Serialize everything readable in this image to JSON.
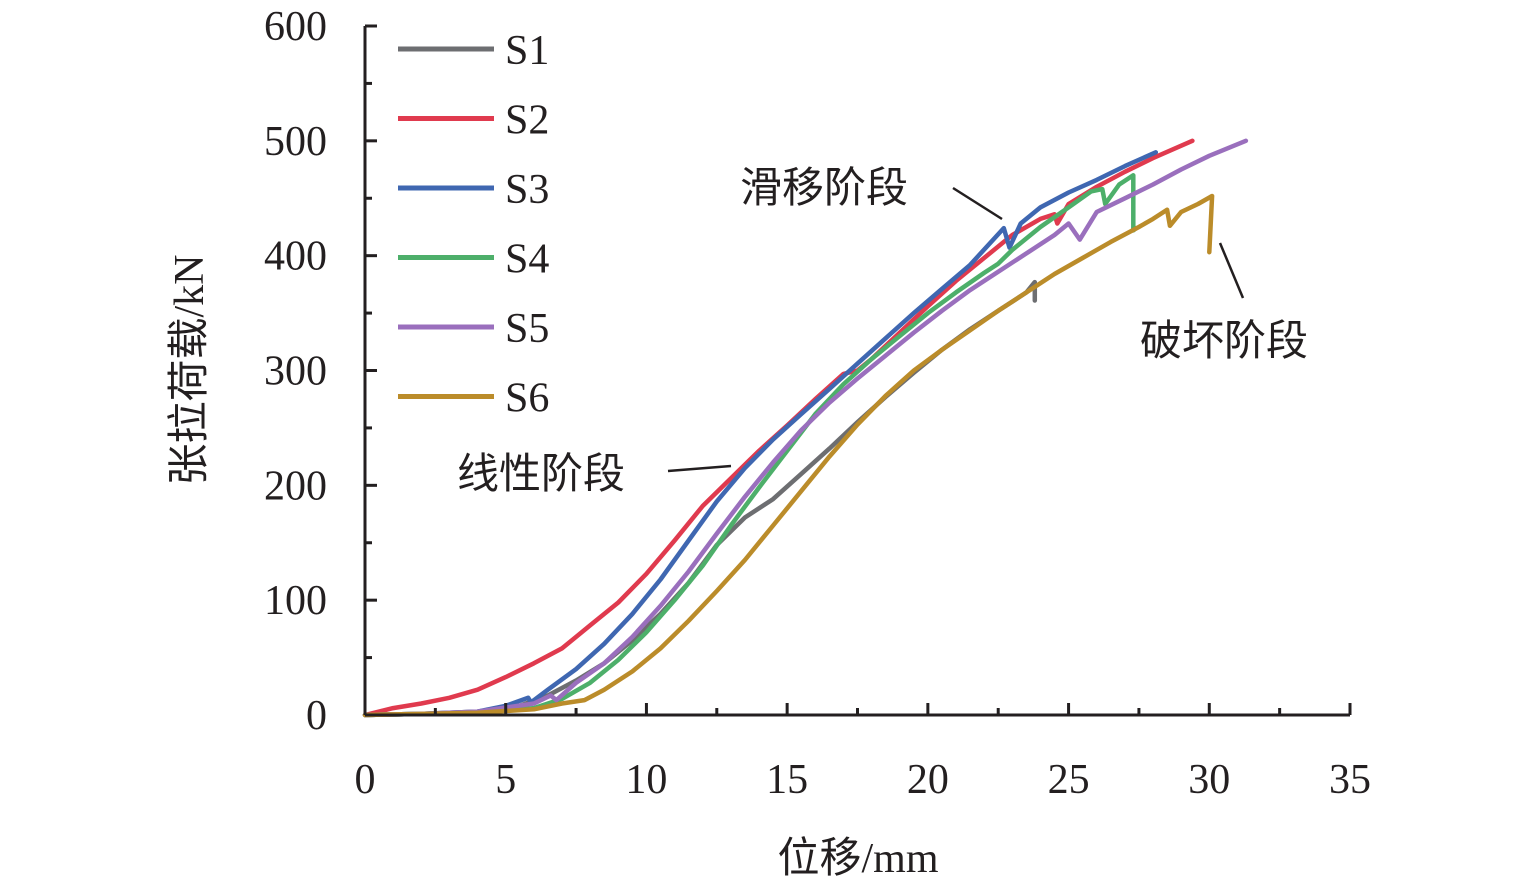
{
  "chart_data": {
    "type": "line",
    "title": "",
    "xlabel": "位移/mm",
    "ylabel": "张拉荷载/kN",
    "xlim": [
      0,
      35
    ],
    "ylim": [
      0,
      600
    ],
    "xticks": [
      0,
      5,
      10,
      15,
      20,
      25,
      30,
      35
    ],
    "yticks": [
      0,
      100,
      200,
      300,
      400,
      500,
      600
    ],
    "xtick_labels": [
      "0",
      "5",
      "10",
      "15",
      "20",
      "25",
      "30",
      "35"
    ],
    "ytick_labels": [
      "0",
      "100",
      "200",
      "300",
      "400",
      "500",
      "600"
    ],
    "grid": false,
    "legend_position": "top-left",
    "series": [
      {
        "name": "S1",
        "color": "#6d6e71",
        "x": [
          0,
          2,
          4,
          5.5,
          6.5,
          7.5,
          8.5,
          9.5,
          10.5,
          11.5,
          12.5,
          13.5,
          14.5,
          15.5,
          16.5,
          17.5,
          18.5,
          19.5,
          20.5,
          21.5,
          22.5,
          23.5,
          23.8,
          23.8
        ],
        "y": [
          0,
          1,
          3,
          8,
          17,
          30,
          45,
          65,
          88,
          115,
          148,
          172,
          188,
          210,
          232,
          255,
          277,
          298,
          318,
          336,
          352,
          368,
          377,
          361
        ]
      },
      {
        "name": "S2",
        "color": "#e03a4e",
        "x": [
          0,
          1,
          2,
          3,
          4,
          5,
          6,
          7,
          8,
          9,
          10,
          11,
          12,
          13,
          14,
          15,
          16,
          17,
          17.5,
          18,
          19,
          20,
          21,
          22,
          23,
          24,
          24.5,
          24.6,
          25,
          26,
          27,
          28,
          29.4
        ],
        "y": [
          0,
          6,
          10,
          15,
          22,
          33,
          45,
          58,
          78,
          98,
          123,
          152,
          182,
          206,
          230,
          252,
          275,
          297,
          300,
          310,
          333,
          356,
          378,
          398,
          418,
          432,
          436,
          428,
          445,
          460,
          473,
          485,
          500
        ]
      },
      {
        "name": "S3",
        "color": "#3f67b1",
        "x": [
          0,
          2,
          4,
          5,
          5.8,
          5.9,
          6.5,
          7.5,
          8.5,
          9.5,
          10.5,
          11.5,
          12.5,
          13.5,
          14.5,
          15.5,
          16.5,
          17.5,
          18.5,
          19.5,
          20.5,
          21.5,
          22.7,
          22.9,
          23.3,
          24,
          25,
          26,
          27,
          28.1
        ],
        "y": [
          0,
          1,
          3,
          8,
          15,
          11,
          22,
          40,
          62,
          88,
          118,
          152,
          186,
          215,
          240,
          262,
          284,
          306,
          328,
          350,
          371,
          392,
          424,
          407,
          428,
          442,
          455,
          466,
          478,
          490
        ]
      },
      {
        "name": "S4",
        "color": "#4daf6a",
        "x": [
          0,
          2,
          4,
          6,
          7,
          8,
          9,
          10,
          11,
          12,
          13,
          14,
          15,
          16,
          17,
          18,
          19,
          20,
          21,
          22,
          22.5,
          23,
          24,
          25,
          25.8,
          26.2,
          26.3,
          26.8,
          27.3,
          27.3,
          27.4
        ],
        "y": [
          0,
          1,
          2,
          6,
          14,
          28,
          48,
          72,
          100,
          130,
          165,
          198,
          230,
          262,
          288,
          310,
          330,
          350,
          368,
          385,
          393,
          405,
          425,
          442,
          456,
          458,
          445,
          462,
          470,
          422,
          424
        ]
      },
      {
        "name": "S5",
        "color": "#9a6fbd",
        "x": [
          0,
          2,
          4,
          6,
          6.6,
          6.8,
          7.5,
          8.5,
          9.5,
          10.5,
          11.5,
          12.5,
          13.5,
          14.5,
          15.5,
          16.5,
          17.5,
          18.5,
          19.5,
          20.5,
          21.5,
          22.5,
          23.5,
          24.5,
          25,
          25.4,
          26,
          27,
          28,
          29,
          30,
          31.3
        ],
        "y": [
          0,
          1,
          3,
          10,
          17,
          13,
          28,
          45,
          68,
          95,
          125,
          158,
          190,
          220,
          248,
          272,
          293,
          313,
          333,
          352,
          370,
          386,
          402,
          418,
          428,
          414,
          438,
          450,
          462,
          475,
          487,
          500
        ]
      },
      {
        "name": "S6",
        "color": "#bb8c2a",
        "x": [
          0,
          2,
          4,
          6,
          7,
          7.8,
          8.5,
          9.5,
          10.5,
          11.5,
          12.5,
          13.5,
          14.5,
          15.5,
          16.5,
          17.5,
          18.5,
          19.5,
          20.5,
          21.5,
          22.5,
          23.5,
          24.5,
          25.5,
          26.5,
          27.5,
          28,
          28.5,
          28.6,
          29,
          29.6,
          30.1,
          30.0
        ],
        "y": [
          0,
          1,
          2,
          5,
          10,
          13,
          22,
          38,
          58,
          82,
          108,
          135,
          165,
          195,
          225,
          253,
          278,
          300,
          318,
          335,
          352,
          368,
          384,
          398,
          412,
          425,
          432,
          440,
          426,
          438,
          445,
          452,
          403
        ]
      }
    ],
    "annotations": [
      {
        "text": "线性阶段",
        "points_to": [
          12.5,
          215
        ]
      },
      {
        "text": "滑移阶段",
        "points_to": [
          22.7,
          424
        ]
      },
      {
        "text": "破坏阶段",
        "points_to": [
          30.1,
          410
        ]
      }
    ]
  }
}
